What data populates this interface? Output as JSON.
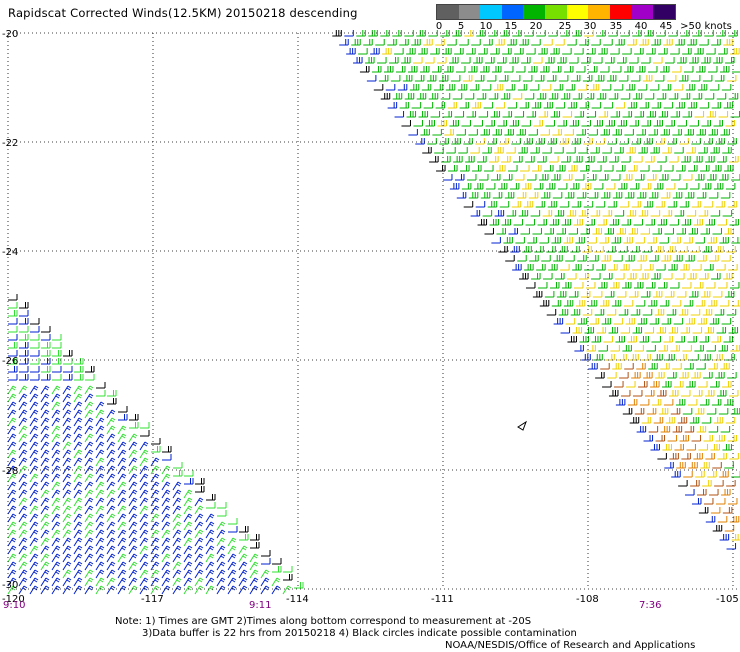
{
  "title": "Rapidscat Corrected Winds(12.5KM) 20150218 descending",
  "scale": {
    "labels": [
      "0",
      "5",
      "10",
      "15",
      "20",
      "25",
      "30",
      "35",
      "40",
      "45",
      ">50 knots"
    ],
    "colors": [
      "#606060",
      "#8c8c8c",
      "#00c8ff",
      "#0064ff",
      "#00b400",
      "#78e000",
      "#ffff00",
      "#ffb400",
      "#ff0000",
      "#a000c8",
      "#320064"
    ]
  },
  "axes": {
    "lat_labels": [
      "-20",
      "-22",
      "-24",
      "-26",
      "-28",
      "-30"
    ],
    "lon_labels": [
      "-120",
      "-117",
      "-114",
      "-111",
      "-108",
      "-105"
    ],
    "lat_range": [
      -30,
      -20
    ],
    "lon_range": [
      -120,
      -105
    ],
    "grid": true
  },
  "times": [
    "9:10",
    "9:11",
    "7:36"
  ],
  "notes": [
    "Note: 1) Times are GMT 2)Times along bottom correspond to measurement at -20S",
    "3)Data buffer is 22 hrs from 20150218 4) Black circles indicate possible contamination",
    "NOAA/NESDIS/Office of Research and Applications"
  ],
  "wind_colors": {
    "black": "#000000",
    "blue": "#0020d0",
    "green": "#00b400",
    "light_green": "#30e030",
    "yellow": "#f0d000",
    "orange": "#e08000",
    "brown": "#b05010"
  }
}
